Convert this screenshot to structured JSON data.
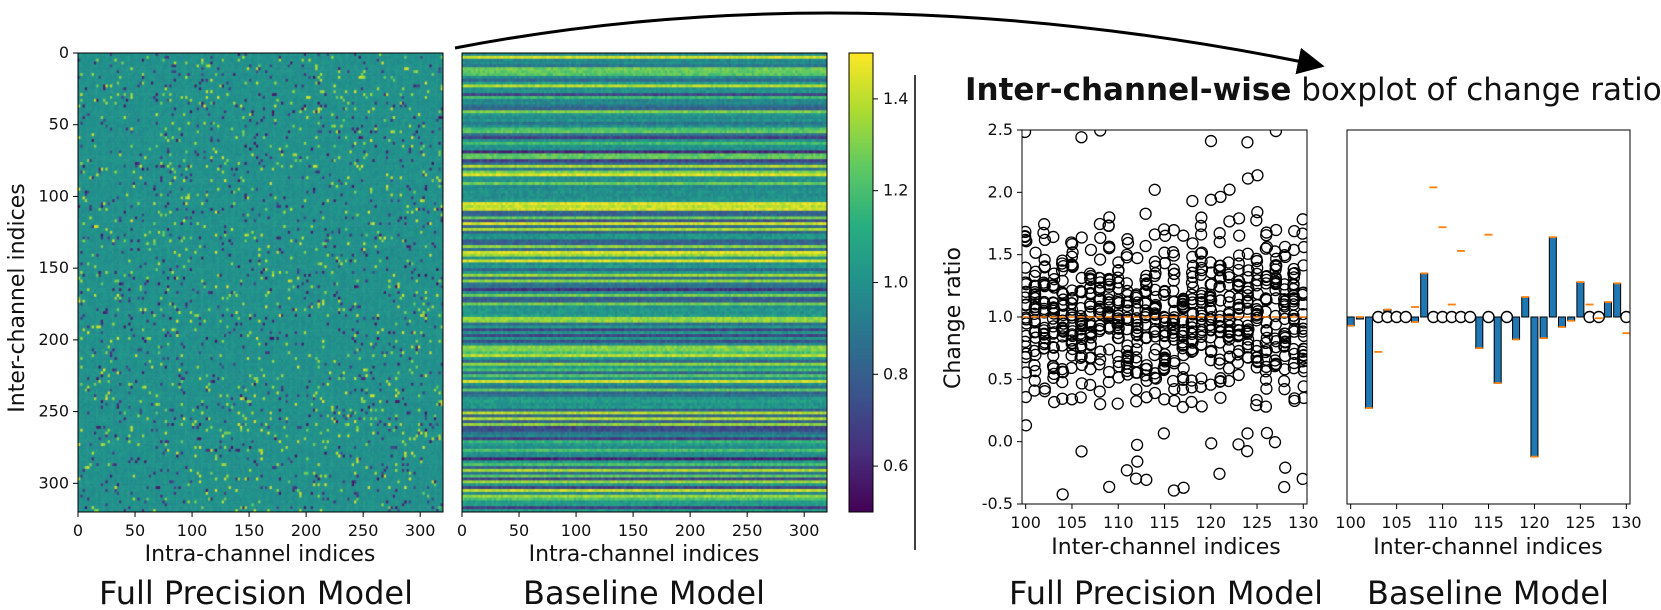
{
  "chart_data": [
    {
      "type": "heatmap",
      "name": "full-precision-heatmap",
      "caption": "Full Precision Model",
      "xlabel": "Intra-channel indices",
      "ylabel": "Inter-channel indices",
      "xticks": [
        0,
        50,
        100,
        150,
        200,
        250,
        300
      ],
      "yticks": [
        0,
        50,
        100,
        150,
        200,
        250,
        300
      ],
      "xlim": [
        0,
        320
      ],
      "ylim": [
        320,
        0
      ],
      "colormap": "viridis",
      "value_range": [
        0.5,
        1.5
      ],
      "pattern": "uniform noise centered at 1.0 with sparse outliers"
    },
    {
      "type": "heatmap",
      "name": "baseline-heatmap",
      "caption": "Baseline Model",
      "xlabel": "Intra-channel indices",
      "xticks": [
        0,
        50,
        100,
        150,
        200,
        250,
        300
      ],
      "xlim": [
        0,
        320
      ],
      "ylim": [
        320,
        0
      ],
      "colormap": "viridis",
      "value_range": [
        0.5,
        1.5
      ],
      "pattern": "horizontal row-wise bands (per inter-channel scaling)",
      "colorbar": {
        "ticks": [
          0.6,
          0.8,
          1.0,
          1.2,
          1.4
        ],
        "range": [
          0.5,
          1.5
        ]
      }
    },
    {
      "type": "boxplot",
      "name": "full-precision-boxplot",
      "caption": "Full Precision Model",
      "xlabel": "Inter-channel indices",
      "ylabel": "Change ratio",
      "xticks": [
        100,
        105,
        110,
        115,
        120,
        125,
        130
      ],
      "yticks": [
        -0.5,
        0.0,
        0.5,
        1.0,
        1.5,
        2.0,
        2.5
      ],
      "xlim": [
        99.6,
        130.4
      ],
      "ylim": [
        -0.5,
        2.5
      ],
      "median": 1.0,
      "pattern": "each channel: median 1.0, dense outliers roughly 0.3-1.8, sparse up to 2.5 and down to -0.5"
    },
    {
      "type": "boxplot",
      "name": "baseline-boxplot",
      "caption": "Baseline Model",
      "xlabel": "Inter-channel indices",
      "xticks": [
        100,
        105,
        110,
        115,
        120,
        125,
        130
      ],
      "xlim": [
        99.6,
        130.4
      ],
      "ylim": [
        -0.5,
        2.5
      ],
      "channels": [
        {
          "x": 100,
          "value": 0.93
        },
        {
          "x": 101,
          "value": 1.0
        },
        {
          "x": 102,
          "value": 0.27
        },
        {
          "x": 103,
          "value": 0.98,
          "outlier": 1.0
        },
        {
          "x": 104,
          "value": 1.06,
          "outlier": 1.0
        },
        {
          "x": 105,
          "value": 1.02,
          "outlier": 1.0
        },
        {
          "x": 106,
          "value": 1.02,
          "outlier": 1.0
        },
        {
          "x": 107,
          "value": 0.96
        },
        {
          "x": 108,
          "value": 1.35
        },
        {
          "x": 109,
          "value": 1.0,
          "outlier": 1.0
        },
        {
          "x": 110,
          "value": 1.0,
          "outlier": 1.0
        },
        {
          "x": 111,
          "value": 1.0,
          "outlier": 1.0
        },
        {
          "x": 112,
          "value": 1.0,
          "outlier": 1.0
        },
        {
          "x": 113,
          "value": 1.0,
          "outlier": 1.0
        },
        {
          "x": 114,
          "value": 0.75
        },
        {
          "x": 115,
          "value": 1.0,
          "outlier": 1.0
        },
        {
          "x": 116,
          "value": 0.47
        },
        {
          "x": 117,
          "value": 1.0,
          "outlier": 1.0
        },
        {
          "x": 118,
          "value": 0.82
        },
        {
          "x": 119,
          "value": 1.16
        },
        {
          "x": 120,
          "value": -0.12
        },
        {
          "x": 121,
          "value": 0.83
        },
        {
          "x": 122,
          "value": 1.64
        },
        {
          "x": 123,
          "value": 0.92
        },
        {
          "x": 124,
          "value": 0.97
        },
        {
          "x": 125,
          "value": 1.28
        },
        {
          "x": 126,
          "value": 1.0,
          "outlier": 1.0
        },
        {
          "x": 127,
          "value": 1.0,
          "outlier": 1.0
        },
        {
          "x": 128,
          "value": 1.12
        },
        {
          "x": 129,
          "value": 1.27
        },
        {
          "x": 130,
          "value": 1.0,
          "outlier": 1.0
        }
      ],
      "stray_medians": [
        {
          "x": 103,
          "value": 0.72
        },
        {
          "x": 107,
          "value": 1.08
        },
        {
          "x": 109,
          "value": 2.04
        },
        {
          "x": 110,
          "value": 1.72
        },
        {
          "x": 111,
          "value": 1.1
        },
        {
          "x": 112,
          "value": 1.53
        },
        {
          "x": 115,
          "value": 1.66
        },
        {
          "x": 126,
          "value": 1.1
        },
        {
          "x": 127,
          "value": 0.99
        },
        {
          "x": 130,
          "value": 0.87
        }
      ]
    }
  ],
  "labels": {
    "title_bold": "Inter-channel-wise",
    "title_rest": " boxplot of change ratio",
    "caption_fp_left": "Full Precision Model",
    "caption_base_left": "Baseline Model",
    "caption_fp_right": "Full Precision Model",
    "caption_base_right": "Baseline Model"
  },
  "colors": {
    "box_fill": "#1f77b4",
    "median": "#ff7f0e",
    "outlier": "#000000",
    "axis": "#000000"
  }
}
